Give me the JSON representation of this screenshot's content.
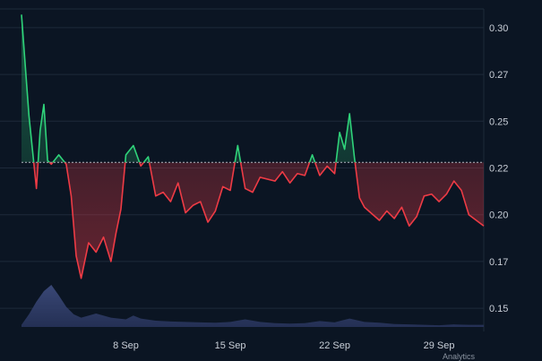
{
  "chart_data": {
    "type": "area",
    "title": "",
    "xlabel": "",
    "ylabel": "",
    "x_tick_labels": [
      "8 Sep",
      "15 Sep",
      "22 Sep",
      "29 Sep"
    ],
    "y_tick_labels": [
      "0.30",
      "0.27",
      "0.25",
      "0.22",
      "0.20",
      "0.17",
      "0.15"
    ],
    "y_ticks": [
      0.3,
      0.275,
      0.25,
      0.225,
      0.2,
      0.175,
      0.15
    ],
    "ylim": [
      0.14,
      0.31
    ],
    "xlim": [
      "2024-09-01",
      "2024-10-02"
    ],
    "baseline": 0.228,
    "colors": {
      "above": "#2fd37a",
      "below": "#ee3b45",
      "baseline": "#b0b6bf",
      "grid": "#1e2a3a",
      "volume": "#33406a"
    },
    "grid": true,
    "series": [
      {
        "values": [
          [
            "2024-09-01",
            0.307
          ],
          [
            "2024-09-01",
            0.253
          ],
          [
            "2024-09-02",
            0.214
          ],
          [
            "2024-09-02",
            0.245
          ],
          [
            "2024-09-02",
            0.259
          ],
          [
            "2024-09-02",
            0.229
          ],
          [
            "2024-09-03",
            0.227
          ],
          [
            "2024-09-03",
            0.232
          ],
          [
            "2024-09-04",
            0.227
          ],
          [
            "2024-09-04",
            0.21
          ],
          [
            "2024-09-04",
            0.178
          ],
          [
            "2024-09-05",
            0.166
          ],
          [
            "2024-09-05",
            0.185
          ],
          [
            "2024-09-06",
            0.18
          ],
          [
            "2024-09-06",
            0.188
          ],
          [
            "2024-09-07",
            0.175
          ],
          [
            "2024-09-07",
            0.19
          ],
          [
            "2024-09-07",
            0.203
          ],
          [
            "2024-09-08",
            0.232
          ],
          [
            "2024-09-08",
            0.237
          ],
          [
            "2024-09-09",
            0.226
          ],
          [
            "2024-09-09",
            0.231
          ],
          [
            "2024-09-10",
            0.21
          ],
          [
            "2024-09-10",
            0.212
          ],
          [
            "2024-09-11",
            0.207
          ],
          [
            "2024-09-11",
            0.217
          ],
          [
            "2024-09-12",
            0.201
          ],
          [
            "2024-09-12",
            0.205
          ],
          [
            "2024-09-13",
            0.207
          ],
          [
            "2024-09-13",
            0.196
          ],
          [
            "2024-09-14",
            0.202
          ],
          [
            "2024-09-14",
            0.215
          ],
          [
            "2024-09-15",
            0.213
          ],
          [
            "2024-09-15",
            0.237
          ],
          [
            "2024-09-16",
            0.214
          ],
          [
            "2024-09-16",
            0.212
          ],
          [
            "2024-09-17",
            0.22
          ],
          [
            "2024-09-18",
            0.218
          ],
          [
            "2024-09-18",
            0.223
          ],
          [
            "2024-09-19",
            0.217
          ],
          [
            "2024-09-19",
            0.222
          ],
          [
            "2024-09-20",
            0.221
          ],
          [
            "2024-09-20",
            0.232
          ],
          [
            "2024-09-21",
            0.221
          ],
          [
            "2024-09-21",
            0.226
          ],
          [
            "2024-09-22",
            0.222
          ],
          [
            "2024-09-22",
            0.244
          ],
          [
            "2024-09-22",
            0.235
          ],
          [
            "2024-09-23",
            0.254
          ],
          [
            "2024-09-23",
            0.23
          ],
          [
            "2024-09-23",
            0.209
          ],
          [
            "2024-09-24",
            0.204
          ],
          [
            "2024-09-25",
            0.197
          ],
          [
            "2024-09-25",
            0.202
          ],
          [
            "2024-09-26",
            0.198
          ],
          [
            "2024-09-26",
            0.204
          ],
          [
            "2024-09-27",
            0.194
          ],
          [
            "2024-09-27",
            0.199
          ],
          [
            "2024-09-28",
            0.21
          ],
          [
            "2024-09-28",
            0.211
          ],
          [
            "2024-09-29",
            0.207
          ],
          [
            "2024-09-29",
            0.211
          ],
          [
            "2024-09-30",
            0.218
          ],
          [
            "2024-09-30",
            0.213
          ],
          [
            "2024-10-01",
            0.2
          ],
          [
            "2024-10-01",
            0.197
          ],
          [
            "2024-10-02",
            0.194
          ]
        ]
      }
    ],
    "volume": [
      [
        "2024-09-01",
        0.05
      ],
      [
        "2024-09-01",
        0.3
      ],
      [
        "2024-09-02",
        0.6
      ],
      [
        "2024-09-02",
        0.85
      ],
      [
        "2024-09-03",
        1.0
      ],
      [
        "2024-09-03",
        0.75
      ],
      [
        "2024-09-04",
        0.48
      ],
      [
        "2024-09-04",
        0.3
      ],
      [
        "2024-09-05",
        0.22
      ],
      [
        "2024-09-06",
        0.32
      ],
      [
        "2024-09-07",
        0.22
      ],
      [
        "2024-09-08",
        0.18
      ],
      [
        "2024-09-08",
        0.27
      ],
      [
        "2024-09-09",
        0.2
      ],
      [
        "2024-09-10",
        0.15
      ],
      [
        "2024-09-11",
        0.13
      ],
      [
        "2024-09-12",
        0.12
      ],
      [
        "2024-09-13",
        0.11
      ],
      [
        "2024-09-14",
        0.1
      ],
      [
        "2024-09-15",
        0.12
      ],
      [
        "2024-09-16",
        0.18
      ],
      [
        "2024-09-17",
        0.12
      ],
      [
        "2024-09-18",
        0.09
      ],
      [
        "2024-09-19",
        0.08
      ],
      [
        "2024-09-20",
        0.09
      ],
      [
        "2024-09-21",
        0.14
      ],
      [
        "2024-09-22",
        0.11
      ],
      [
        "2024-09-23",
        0.2
      ],
      [
        "2024-09-24",
        0.12
      ],
      [
        "2024-09-25",
        0.1
      ],
      [
        "2024-09-26",
        0.07
      ],
      [
        "2024-09-27",
        0.06
      ],
      [
        "2024-09-28",
        0.05
      ],
      [
        "2024-09-29",
        0.04
      ],
      [
        "2024-09-30",
        0.06
      ],
      [
        "2024-10-01",
        0.05
      ],
      [
        "2024-10-02",
        0.05
      ]
    ]
  },
  "branding": {
    "logo_text": "Analytics"
  }
}
